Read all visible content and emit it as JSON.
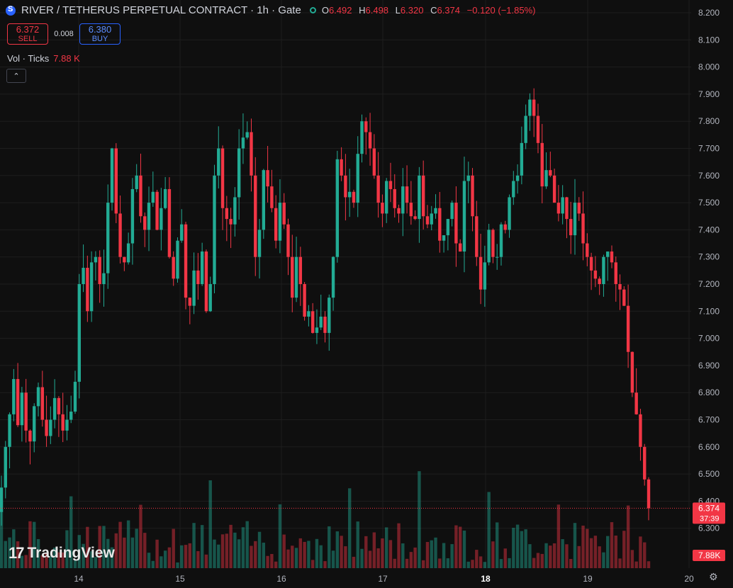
{
  "header": {
    "title": "RIVER / TETHERUS PERPETUAL CONTRACT · 1h · Gate",
    "ohlc": {
      "o_label": "O",
      "o": "6.492",
      "h_label": "H",
      "h": "6.498",
      "l_label": "L",
      "l": "6.320",
      "c_label": "C",
      "c": "6.374",
      "change": "−0.120 (−1.85%)"
    }
  },
  "trade": {
    "sell_price": "6.372",
    "sell_label": "SELL",
    "spread": "0.008",
    "buy_price": "6.380",
    "buy_label": "BUY"
  },
  "volume": {
    "label": "Vol · Ticks",
    "value": "7.88 K"
  },
  "collapse_icon": "chevron-up-icon",
  "logo": "TradingView",
  "colors": {
    "up": "#22ab94",
    "down": "#f23645",
    "background": "#0f0f0f",
    "grid": "#1e1e1e",
    "text": "#b2b5be",
    "price_tag": "#f23645",
    "buy": "#2962ff"
  },
  "chart_data": {
    "type": "candlestick",
    "title": "",
    "y_axis": {
      "side": "right",
      "range": [
        6.24,
        8.24
      ],
      "ticks": [
        "8.200",
        "8.100",
        "8.000",
        "7.900",
        "7.800",
        "7.700",
        "7.600",
        "7.500",
        "7.400",
        "7.300",
        "7.200",
        "7.100",
        "7.000",
        "6.900",
        "6.800",
        "6.700",
        "6.600",
        "6.500",
        "6.400",
        "6.300"
      ]
    },
    "x_axis": {
      "labels": [
        "14",
        "15",
        "16",
        "17",
        "18",
        "19",
        "20"
      ],
      "bold": "18"
    },
    "last_price": {
      "value": "6.374",
      "countdown": "37:39"
    },
    "volume_tag": "7.88K",
    "series_close": [
      6.45,
      6.6,
      6.72,
      6.85,
      6.68,
      6.8,
      6.66,
      6.62,
      6.75,
      6.82,
      6.7,
      6.64,
      6.7,
      6.78,
      6.72,
      6.66,
      6.7,
      6.73,
      6.84,
      7.2,
      7.26,
      7.1,
      7.28,
      7.3,
      7.2,
      7.24,
      7.5,
      7.7,
      7.46,
      7.3,
      7.28,
      7.35,
      7.55,
      7.6,
      7.45,
      7.4,
      7.5,
      7.54,
      7.4,
      7.48,
      7.55,
      7.3,
      7.22,
      7.36,
      7.42,
      7.15,
      7.12,
      7.25,
      7.2,
      7.32,
      7.1,
      7.2,
      7.6,
      7.7,
      7.48,
      7.44,
      7.42,
      7.52,
      7.7,
      7.74,
      7.76,
      7.6,
      7.3,
      7.4,
      7.62,
      7.56,
      7.48,
      7.36,
      7.5,
      7.42,
      7.3,
      7.15,
      7.3,
      7.2,
      7.08,
      7.1,
      7.02,
      7.04,
      7.08,
      7.02,
      7.15,
      7.3,
      7.66,
      7.6,
      7.52,
      7.54,
      7.5,
      7.68,
      7.8,
      7.76,
      7.7,
      7.6,
      7.5,
      7.46,
      7.58,
      7.55,
      7.48,
      7.46,
      7.56,
      7.5,
      7.45,
      7.44,
      7.6,
      7.45,
      7.42,
      7.46,
      7.48,
      7.36,
      7.38,
      7.44,
      7.5,
      7.35,
      7.32,
      7.58,
      7.6,
      7.45,
      7.3,
      7.18,
      7.28,
      7.4,
      7.3,
      7.3,
      7.42,
      7.4,
      7.52,
      7.58,
      7.6,
      7.72,
      7.82,
      7.88,
      7.82,
      7.72,
      7.56,
      7.62,
      7.6,
      7.5,
      7.46,
      7.52,
      7.44,
      7.38,
      7.5,
      7.46,
      7.35,
      7.3,
      7.25,
      7.22,
      7.2,
      7.3,
      7.32,
      7.28,
      7.2,
      7.18,
      7.12,
      6.95,
      6.8,
      6.72,
      6.6,
      6.48,
      6.374
    ]
  }
}
